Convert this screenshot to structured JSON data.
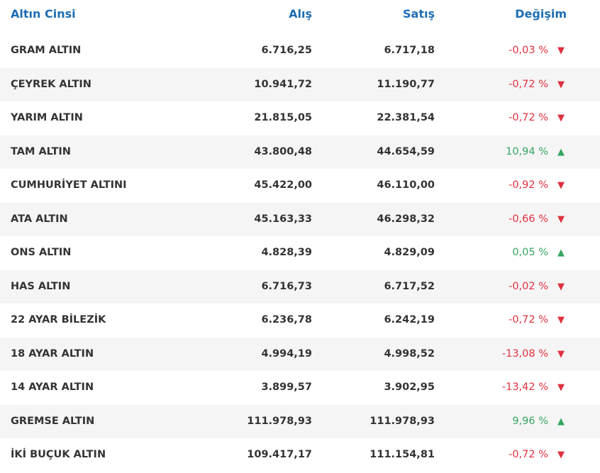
{
  "table": {
    "header": [
      "Altın Cinsi",
      "Alış",
      "Satış",
      "Değişim"
    ],
    "rows": [
      [
        "GRAM ALTIN",
        "6.716,25",
        "6.717,18",
        "-0,03 %"
      ],
      [
        "ÇEYREK ALTIN",
        "10.941,72",
        "11.190,77",
        "-0,72 %"
      ],
      [
        "YARIM ALTIN",
        "21.815,05",
        "22.381,54",
        "-0,72 %"
      ],
      [
        "TAM ALTIN",
        "43.800,48",
        "44.654,59",
        "10,94 %"
      ],
      [
        "CUMHURİYET ALTINI",
        "45.422,00",
        "46.110,00",
        "-0,92 %"
      ],
      [
        "ATA ALTIN",
        "45.163,33",
        "46.298,32",
        "-0,66 %"
      ],
      [
        "ONS ALTIN",
        "4.828,39",
        "4.829,09",
        "0,05 %"
      ],
      [
        "HAS ALTIN",
        "6.716,73",
        "6.717,52",
        "-0,02 %"
      ],
      [
        "22 AYAR BİLEZİK",
        "6.236,78",
        "6.242,19",
        "-0,72 %"
      ],
      [
        "18 AYAR ALTIN",
        "4.994,19",
        "4.998,52",
        "-13,08 %"
      ],
      [
        "14 AYAR ALTIN",
        "3.899,57",
        "3.902,95",
        "-13,42 %"
      ],
      [
        "GREMSE ALTIN",
        "111.978,93",
        "111.978,93",
        "9,96 %"
      ],
      [
        "İKİ BUÇUK ALTIN",
        "109.417,17",
        "111.154,81",
        "-0,72 %"
      ]
    ]
  }
}
